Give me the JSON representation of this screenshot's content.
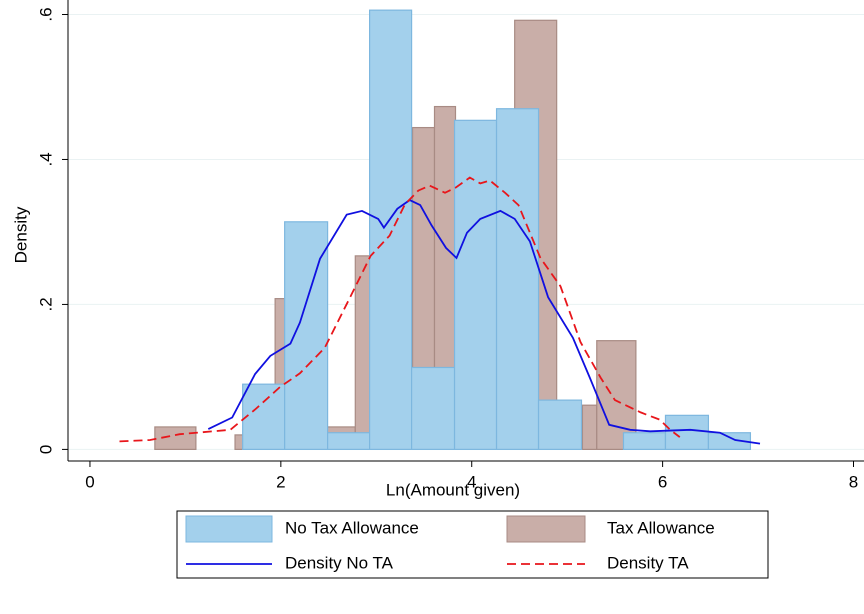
{
  "chart_data": {
    "type": "histogram",
    "x_label": "Ln(Amount given)",
    "y_label": "Density",
    "xlim": [
      -0.23,
      8.11
    ],
    "ylim": [
      -0.016,
      0.62
    ],
    "xticks": [
      0,
      2,
      4,
      6,
      8
    ],
    "yticks": [
      0,
      {
        "value": 0.2,
        "label": ".2"
      },
      {
        "value": 0.4,
        "label": ".4"
      },
      {
        "value": 0.6,
        "label": ".6"
      }
    ],
    "grid": true,
    "legend": "bottom",
    "series": [
      {
        "name": "No Tax Allowance",
        "type": "histogram",
        "color": "#a3d0ec",
        "stroke": "#7db7df",
        "bins": [
          1.6,
          2.04,
          2.49,
          2.93,
          3.37,
          3.82,
          4.26,
          4.7,
          5.15,
          5.59,
          6.03,
          6.48,
          6.92
        ],
        "values": [
          0.09,
          0.314,
          0.023,
          0.606,
          0.113,
          0.454,
          0.47,
          0.068,
          0,
          0.023,
          0.047,
          0.023
        ]
      },
      {
        "name": "Tax Allowance",
        "type": "histogram",
        "color": "#c9aea8",
        "stroke": "#a88b84",
        "bins": [
          0.68,
          1.11,
          1.52,
          1.94,
          2.48,
          2.78,
          3.38,
          3.61,
          3.83,
          4.45,
          4.89,
          5.16,
          5.31,
          5.72
        ],
        "values": [
          0.031,
          0,
          0.02,
          0.208,
          0.031,
          0.267,
          0.444,
          0.473,
          0.3,
          0.592,
          0.06,
          0.061,
          0.15
        ]
      },
      {
        "name": "Density No TA",
        "type": "line",
        "color": "#1010e0",
        "dash": "solid",
        "x": [
          1.24,
          1.49,
          1.73,
          1.89,
          2.1,
          2.2,
          2.41,
          2.69,
          2.85,
          3.02,
          3.08,
          3.22,
          3.35,
          3.46,
          3.58,
          3.73,
          3.84,
          3.95,
          4.09,
          4.3,
          4.45,
          4.61,
          4.8,
          5.06,
          5.24,
          5.44,
          5.66,
          5.87,
          6.29,
          6.6,
          6.76,
          7.02
        ],
        "values": [
          0.028,
          0.044,
          0.104,
          0.129,
          0.146,
          0.175,
          0.263,
          0.324,
          0.329,
          0.318,
          0.306,
          0.332,
          0.344,
          0.337,
          0.309,
          0.278,
          0.264,
          0.299,
          0.318,
          0.329,
          0.318,
          0.287,
          0.21,
          0.154,
          0.098,
          0.034,
          0.027,
          0.025,
          0.027,
          0.023,
          0.013,
          0.008
        ]
      },
      {
        "name": "Density TA",
        "type": "line",
        "color": "#e8161b",
        "dash": "dashed",
        "x": [
          0.31,
          0.63,
          0.94,
          1.47,
          1.73,
          1.99,
          2.2,
          2.46,
          2.73,
          2.94,
          3.14,
          3.3,
          3.44,
          3.56,
          3.72,
          3.83,
          3.98,
          4.09,
          4.19,
          4.35,
          4.49,
          4.72,
          4.93,
          5.14,
          5.35,
          5.5,
          5.77,
          5.97,
          6.08,
          6.18
        ],
        "values": [
          0.011,
          0.013,
          0.021,
          0.027,
          0.055,
          0.086,
          0.105,
          0.14,
          0.211,
          0.267,
          0.295,
          0.338,
          0.357,
          0.364,
          0.354,
          0.361,
          0.375,
          0.367,
          0.371,
          0.354,
          0.337,
          0.264,
          0.225,
          0.148,
          0.099,
          0.068,
          0.051,
          0.041,
          0.027,
          0.017
        ]
      }
    ]
  }
}
